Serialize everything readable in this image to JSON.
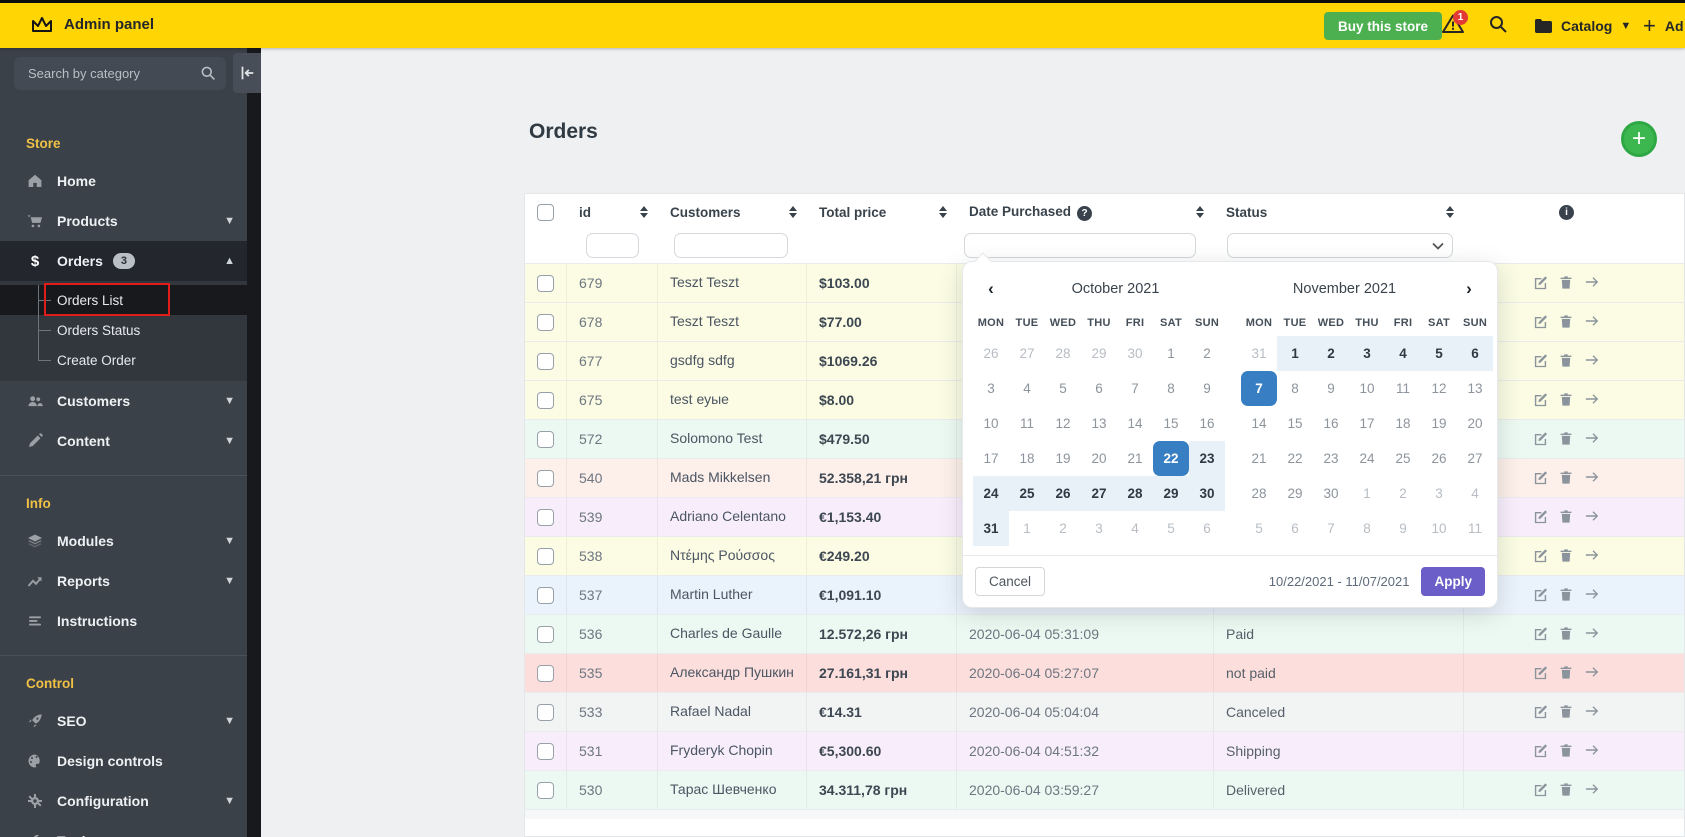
{
  "topbar": {
    "brand": "Admin panel",
    "buy_button": "Buy this store",
    "alert_count": "1",
    "catalog": "Catalog",
    "add_label": "Ad"
  },
  "sidebar": {
    "search_placeholder": "Search by category",
    "sections": [
      {
        "label": "Store",
        "items": [
          {
            "label": "Home",
            "icon": "home"
          },
          {
            "label": "Products",
            "icon": "cart",
            "chevron": "down"
          },
          {
            "label": "Orders",
            "icon": "dollar",
            "badge": "3",
            "chevron": "up",
            "active": true,
            "children": [
              {
                "label": "Orders List",
                "current": true
              },
              {
                "label": "Orders Status"
              },
              {
                "label": "Create Order"
              }
            ]
          },
          {
            "label": "Customers",
            "icon": "users",
            "chevron": "down"
          },
          {
            "label": "Content",
            "icon": "pencil",
            "chevron": "down"
          }
        ]
      },
      {
        "label": "Info",
        "items": [
          {
            "label": "Modules",
            "icon": "layers",
            "chevron": "down"
          },
          {
            "label": "Reports",
            "icon": "trend",
            "chevron": "down"
          },
          {
            "label": "Instructions",
            "icon": "list"
          }
        ]
      },
      {
        "label": "Control",
        "items": [
          {
            "label": "SEO",
            "icon": "rocket",
            "chevron": "down"
          },
          {
            "label": "Design controls",
            "icon": "palette"
          },
          {
            "label": "Configuration",
            "icon": "gear",
            "chevron": "down"
          },
          {
            "label": "Tools",
            "icon": "wrench",
            "chevron": "down"
          }
        ]
      }
    ]
  },
  "page": {
    "title": "Orders"
  },
  "table": {
    "headers": {
      "id": "id",
      "customers": "Customers",
      "total_price": "Total price",
      "date_purchased": "Date Purchased",
      "status": "Status"
    },
    "rows": [
      {
        "id": "679",
        "customer": "Teszt Teszt",
        "price": "$103.00",
        "date": "",
        "status": "",
        "tint": "yellow"
      },
      {
        "id": "678",
        "customer": "Teszt Teszt",
        "price": "$77.00",
        "date": "",
        "status": "",
        "tint": "yellow"
      },
      {
        "id": "677",
        "customer": "gsdfg sdfg",
        "price": "$1069.26",
        "date": "",
        "status": "",
        "tint": "yellow"
      },
      {
        "id": "675",
        "customer": "test еуые",
        "price": "$8.00",
        "date": "",
        "status": "",
        "tint": "yellow"
      },
      {
        "id": "572",
        "customer": "Solomono Test",
        "price": "$479.50",
        "date": "",
        "status": "",
        "tint": "mint"
      },
      {
        "id": "540",
        "customer": "Mads Mikkelsen",
        "price": "52.358,21 грн",
        "date": "",
        "status": "",
        "tint": "salmon"
      },
      {
        "id": "539",
        "customer": "Adriano Celentano",
        "price": "€1,153.40",
        "date": "",
        "status": "",
        "tint": "purple"
      },
      {
        "id": "538",
        "customer": "Ντέμης Ρούσσος",
        "price": "€249.20",
        "date": "",
        "status": "",
        "tint": "yellow"
      },
      {
        "id": "537",
        "customer": "Martin Luther",
        "price": "€1,091.10",
        "date": "",
        "status": "",
        "tint": "blue"
      },
      {
        "id": "536",
        "customer": "Charles de Gaulle",
        "price": "12.572,26 грн",
        "date": "2020-06-04 05:31:09",
        "status": "Paid",
        "tint": "mint"
      },
      {
        "id": "535",
        "customer": "Александр Пушкин",
        "price": "27.161,31 грн",
        "date": "2020-06-04 05:27:07",
        "status": "not paid",
        "tint": "pink"
      },
      {
        "id": "533",
        "customer": "Rafael Nadal",
        "price": "€14.31",
        "date": "2020-06-04 05:04:04",
        "status": "Canceled",
        "tint": "gray"
      },
      {
        "id": "531",
        "customer": "Fryderyk Chopin",
        "price": "€5,300.60",
        "date": "2020-06-04 04:51:32",
        "status": "Shipping",
        "tint": "purple"
      },
      {
        "id": "530",
        "customer": "Тарас Шевченко",
        "price": "34.311,78 грн",
        "date": "2020-06-04 03:59:27",
        "status": "Delivered",
        "tint": "mint"
      }
    ]
  },
  "datepicker": {
    "weekdays": [
      "MON",
      "TUE",
      "WED",
      "THU",
      "FRI",
      "SAT",
      "SUN"
    ],
    "months": [
      {
        "title": "October 2021",
        "cells": [
          "26o",
          "27o",
          "28o",
          "29o",
          "30o",
          "1n",
          "2n",
          "3n",
          "4n",
          "5n",
          "6n",
          "7n",
          "8n",
          "9n",
          "10n",
          "11n",
          "12n",
          "13n",
          "14n",
          "15n",
          "16n",
          "17n",
          "18n",
          "19n",
          "20n",
          "21n",
          "22S",
          "23r",
          "24r",
          "25r",
          "26r",
          "27r",
          "28r",
          "29r",
          "30r",
          "31r",
          "1o",
          "2o",
          "3o",
          "4o",
          "5o",
          "6o"
        ]
      },
      {
        "title": "November 2021",
        "cells": [
          "31o",
          "1r",
          "2r",
          "3r",
          "4r",
          "5r",
          "6r",
          "7E",
          "8n",
          "9n",
          "10n",
          "11n",
          "12n",
          "13n",
          "14n",
          "15n",
          "16n",
          "17n",
          "18n",
          "19n",
          "20n",
          "21n",
          "22n",
          "23n",
          "24n",
          "25n",
          "26n",
          "27n",
          "28n",
          "29n",
          "30n",
          "1o",
          "2o",
          "3o",
          "4o",
          "5o",
          "6o",
          "7o",
          "8o",
          "9o",
          "10o",
          "11o"
        ]
      }
    ],
    "range_label": "10/22/2021 - 11/07/2021",
    "cancel_label": "Cancel",
    "apply_label": "Apply",
    "colors": {
      "selected": "#377fc2",
      "range": "#e9f1f8",
      "apply": "#6b5ec9"
    }
  }
}
